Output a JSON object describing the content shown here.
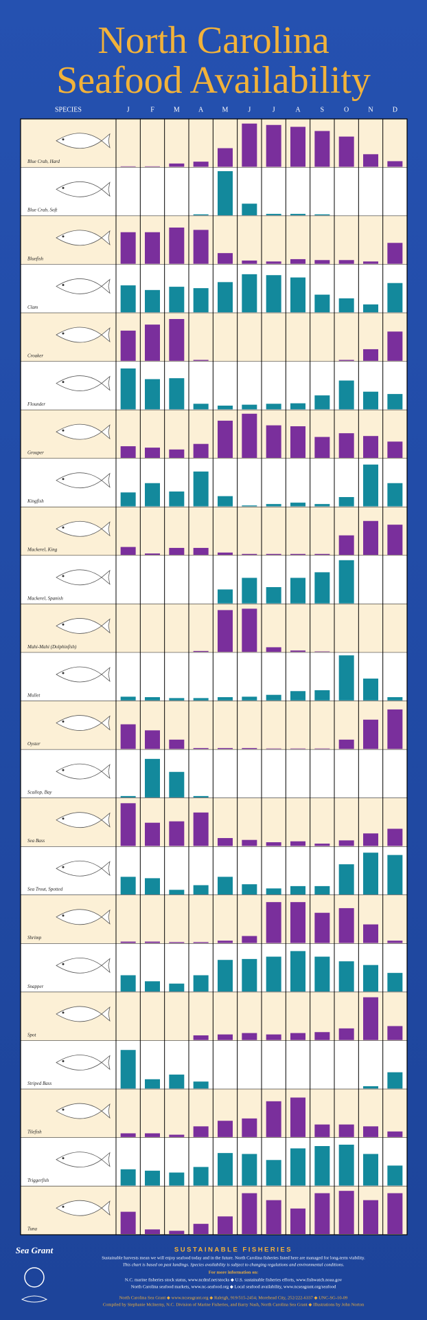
{
  "chart_data": {
    "type": "bar",
    "title": [
      "North Carolina",
      "Seafood Availability"
    ],
    "species_label": "SPECIES",
    "categories": [
      "J",
      "F",
      "M",
      "A",
      "M",
      "J",
      "J",
      "A",
      "S",
      "O",
      "N",
      "D"
    ],
    "ylim": [
      0,
      100
    ],
    "series": [
      {
        "name": "Blue Crab, Hard",
        "color": "#7a2f9c",
        "values": [
          1,
          1,
          7,
          11,
          40,
          93,
          90,
          86,
          77,
          65,
          27,
          12
        ]
      },
      {
        "name": "Blue Crab, Soft",
        "color": "#13899c",
        "values": [
          0,
          0,
          0,
          2,
          95,
          25,
          3,
          3,
          2,
          0,
          0,
          0
        ]
      },
      {
        "name": "Bluefish",
        "color": "#7a2f9c",
        "values": [
          68,
          68,
          78,
          73,
          23,
          7,
          5,
          10,
          8,
          8,
          5,
          45
        ]
      },
      {
        "name": "Clam",
        "color": "#13899c",
        "values": [
          58,
          48,
          55,
          52,
          65,
          82,
          80,
          75,
          38,
          30,
          17,
          63
        ]
      },
      {
        "name": "Croaker",
        "color": "#7a2f9c",
        "values": [
          65,
          78,
          90,
          2,
          0,
          0,
          0,
          0,
          0,
          2,
          25,
          63
        ]
      },
      {
        "name": "Flounder",
        "color": "#13899c",
        "values": [
          88,
          65,
          67,
          12,
          8,
          10,
          12,
          13,
          30,
          62,
          38,
          33
        ]
      },
      {
        "name": "Grouper",
        "color": "#7a2f9c",
        "values": [
          25,
          22,
          18,
          30,
          80,
          95,
          70,
          68,
          45,
          53,
          47,
          35
        ]
      },
      {
        "name": "Kingfish",
        "color": "#13899c",
        "values": [
          30,
          50,
          32,
          75,
          22,
          2,
          5,
          8,
          5,
          20,
          90,
          50
        ]
      },
      {
        "name": "Mackerel, King",
        "color": "#7a2f9c",
        "values": [
          17,
          3,
          15,
          15,
          5,
          2,
          2,
          2,
          2,
          42,
          73,
          65
        ]
      },
      {
        "name": "Mackerel, Spanish",
        "color": "#13899c",
        "values": [
          0,
          0,
          0,
          0,
          30,
          55,
          35,
          55,
          67,
          93,
          0,
          0
        ]
      },
      {
        "name": "Mahi-Mahi (Dolphinfish)",
        "color": "#7a2f9c",
        "values": [
          0,
          0,
          0,
          2,
          90,
          93,
          10,
          3,
          1,
          0,
          0,
          0
        ]
      },
      {
        "name": "Mullet",
        "color": "#13899c",
        "values": [
          8,
          7,
          5,
          5,
          7,
          8,
          12,
          20,
          22,
          97,
          47,
          7
        ]
      },
      {
        "name": "Oyster",
        "color": "#7a2f9c",
        "values": [
          53,
          40,
          20,
          2,
          2,
          2,
          1,
          1,
          1,
          20,
          63,
          85
        ]
      },
      {
        "name": "Scallop, Bay",
        "color": "#13899c",
        "values": [
          3,
          83,
          55,
          3,
          0,
          0,
          0,
          0,
          0,
          0,
          0,
          0
        ]
      },
      {
        "name": "Sea Bass",
        "color": "#7a2f9c",
        "values": [
          92,
          50,
          53,
          72,
          17,
          13,
          8,
          10,
          5,
          12,
          27,
          37
        ]
      },
      {
        "name": "Sea Trout, Spotted",
        "color": "#13899c",
        "values": [
          38,
          35,
          10,
          20,
          38,
          22,
          13,
          18,
          18,
          65,
          90,
          85
        ]
      },
      {
        "name": "Shrimp",
        "color": "#7a2f9c",
        "values": [
          3,
          3,
          2,
          2,
          5,
          15,
          88,
          88,
          65,
          75,
          40,
          5
        ]
      },
      {
        "name": "Snapper",
        "color": "#13899c",
        "values": [
          35,
          22,
          17,
          35,
          68,
          70,
          75,
          87,
          75,
          65,
          57,
          40
        ]
      },
      {
        "name": "Spot",
        "color": "#7a2f9c",
        "values": [
          0,
          0,
          0,
          10,
          12,
          15,
          12,
          15,
          17,
          25,
          92,
          30
        ]
      },
      {
        "name": "Striped Bass",
        "color": "#13899c",
        "values": [
          83,
          20,
          30,
          15,
          0,
          0,
          0,
          0,
          0,
          0,
          5,
          35
        ]
      },
      {
        "name": "Tilefish",
        "color": "#7a2f9c",
        "values": [
          8,
          8,
          5,
          23,
          35,
          40,
          77,
          85,
          27,
          27,
          23,
          12
        ]
      },
      {
        "name": "Triggerfish",
        "color": "#13899c",
        "values": [
          35,
          32,
          28,
          40,
          70,
          68,
          55,
          80,
          85,
          88,
          68,
          43
        ]
      },
      {
        "name": "Tuna",
        "color": "#7a2f9c",
        "values": [
          48,
          10,
          7,
          22,
          38,
          88,
          73,
          55,
          88,
          93,
          73,
          88
        ]
      }
    ]
  },
  "footer": {
    "logo": "Sea Grant",
    "heading": "SUSTAINABLE FISHERIES",
    "lines": [
      "Sustainable harvests mean we will enjoy seafood today and in the future. North Carolina fisheries listed here are managed for long-term viability.",
      "This chart is based on past landings. Species availability is subject to changing regulations and environmental conditions."
    ],
    "info_heading": "For more information on:",
    "info": [
      "N.C. marine fisheries stock status, www.ncdmf.net/stocks ◆ U.S. sustainable fisheries efforts, www.fishwatch.noaa.gov",
      "North Carolina seafood markets, www.nc-seafood.org ◆ Local seafood availability, www.ncseagrant.org/seafood"
    ],
    "credits": [
      "North Carolina Sea Grant ◆ www.ncseagrant.org ◆ Raleigh, 919/515-2454; Morehead City, 252/222-6337 ◆ UNC-SG-10-09",
      "Compiled by Stephanie McInerny, N.C. Division of Marine Fisheries, and Barry Nash, North Carolina Sea Grant ◆ Illustrations by John Norton"
    ]
  }
}
